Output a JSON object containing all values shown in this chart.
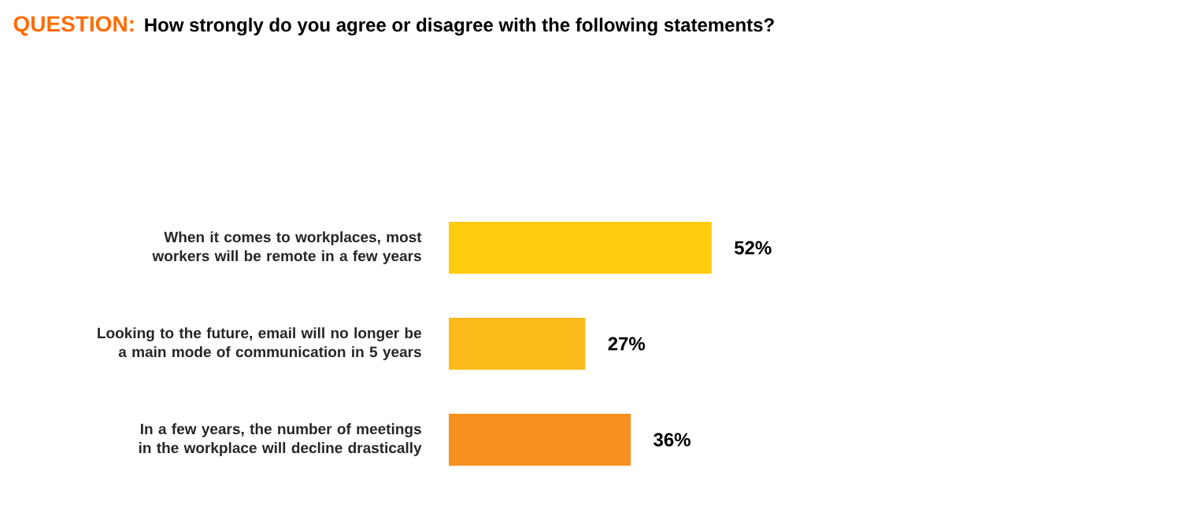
{
  "chart_data": {
    "type": "bar",
    "orientation": "horizontal",
    "title": "QUESTION:",
    "subtitle": "How strongly do you agree or disagree with the following statements?",
    "categories": [
      "When it comes to workplaces, most workers will be remote in a few years",
      "Looking to the future, email will no longer be a main mode of communication in 5 years",
      "In a few years, the number of meetings in the workplace will decline drastically"
    ],
    "values": [
      52,
      27,
      36
    ],
    "value_labels": [
      "52%",
      "27%",
      "36%"
    ],
    "colors": [
      "#ffcc0f",
      "#fbbb1b",
      "#f7901e"
    ]
  }
}
